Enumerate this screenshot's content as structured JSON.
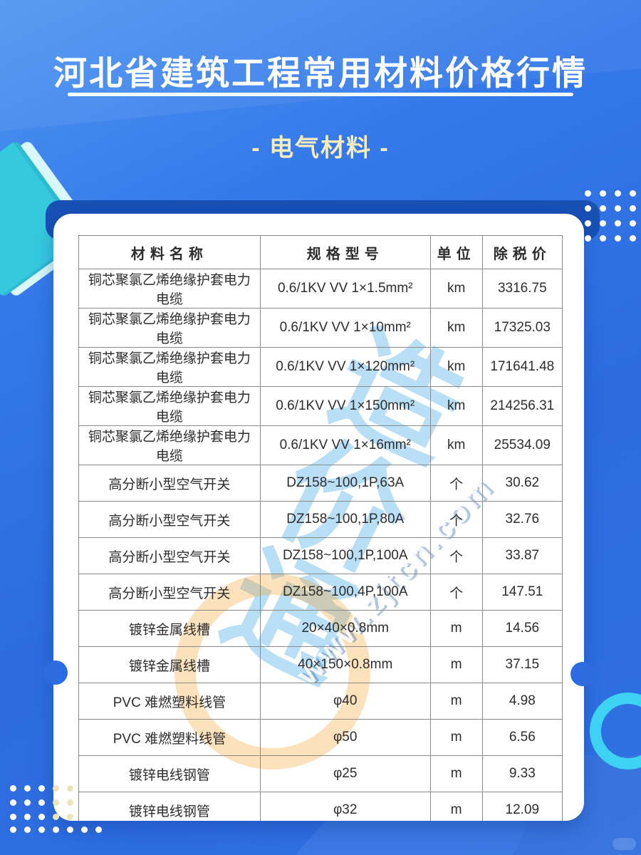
{
  "page": {
    "title": "河北省建筑工程常用材料价格行情",
    "subtitle": "- 电气材料 -"
  },
  "watermark": {
    "logo_text": "造价通",
    "url_text": "www.zjtcn.com"
  },
  "table": {
    "columns": [
      "材料名称",
      "规格型号",
      "单位",
      "除税价"
    ],
    "rows": [
      [
        "铜芯聚氯乙烯绝缘护套电力电缆",
        "0.6/1KV VV 1×1.5mm²",
        "km",
        "3316.75"
      ],
      [
        "铜芯聚氯乙烯绝缘护套电力电缆",
        "0.6/1KV VV 1×10mm²",
        "km",
        "17325.03"
      ],
      [
        "铜芯聚氯乙烯绝缘护套电力电缆",
        "0.6/1KV VV 1×120mm²",
        "km",
        "171641.48"
      ],
      [
        "铜芯聚氯乙烯绝缘护套电力电缆",
        "0.6/1KV VV 1×150mm²",
        "km",
        "214256.31"
      ],
      [
        "铜芯聚氯乙烯绝缘护套电力电缆",
        "0.6/1KV VV 1×16mm²",
        "km",
        "25534.09"
      ],
      [
        "高分断小型空气开关",
        "DZ158~100,1P,63A",
        "个",
        "30.62"
      ],
      [
        "高分断小型空气开关",
        "DZ158~100,1P,80A",
        "个",
        "32.76"
      ],
      [
        "高分断小型空气开关",
        "DZ158~100,1P,100A",
        "个",
        "33.87"
      ],
      [
        "高分断小型空气开关",
        "DZ158~100,4P,100A",
        "个",
        "147.51"
      ],
      [
        "镀锌金属线槽",
        "20×40×0.8mm",
        "m",
        "14.56"
      ],
      [
        "镀锌金属线槽",
        "40×150×0.8mm",
        "m",
        "37.15"
      ],
      [
        "PVC 难燃塑料线管",
        "φ40",
        "m",
        "4.98"
      ],
      [
        "PVC 难燃塑料线管",
        "φ50",
        "m",
        "6.56"
      ],
      [
        "镀锌电线钢管",
        "φ25",
        "m",
        "9.33"
      ],
      [
        "镀锌电线钢管",
        "φ32",
        "m",
        "12.09"
      ]
    ]
  },
  "colors": {
    "background_blue": "#2c6ce0",
    "background_light_blue": "#4f96f1",
    "navy_band": "#1850b4",
    "card_white": "#ffffff",
    "accent_cyan": "#3ed3f4",
    "subtitle_cream": "#f6ecbd",
    "table_border": "#8a8a8a",
    "table_text": "#2d2d2d",
    "watermark_blue": "#80c4ee",
    "watermark_orange": "#f4a632"
  }
}
